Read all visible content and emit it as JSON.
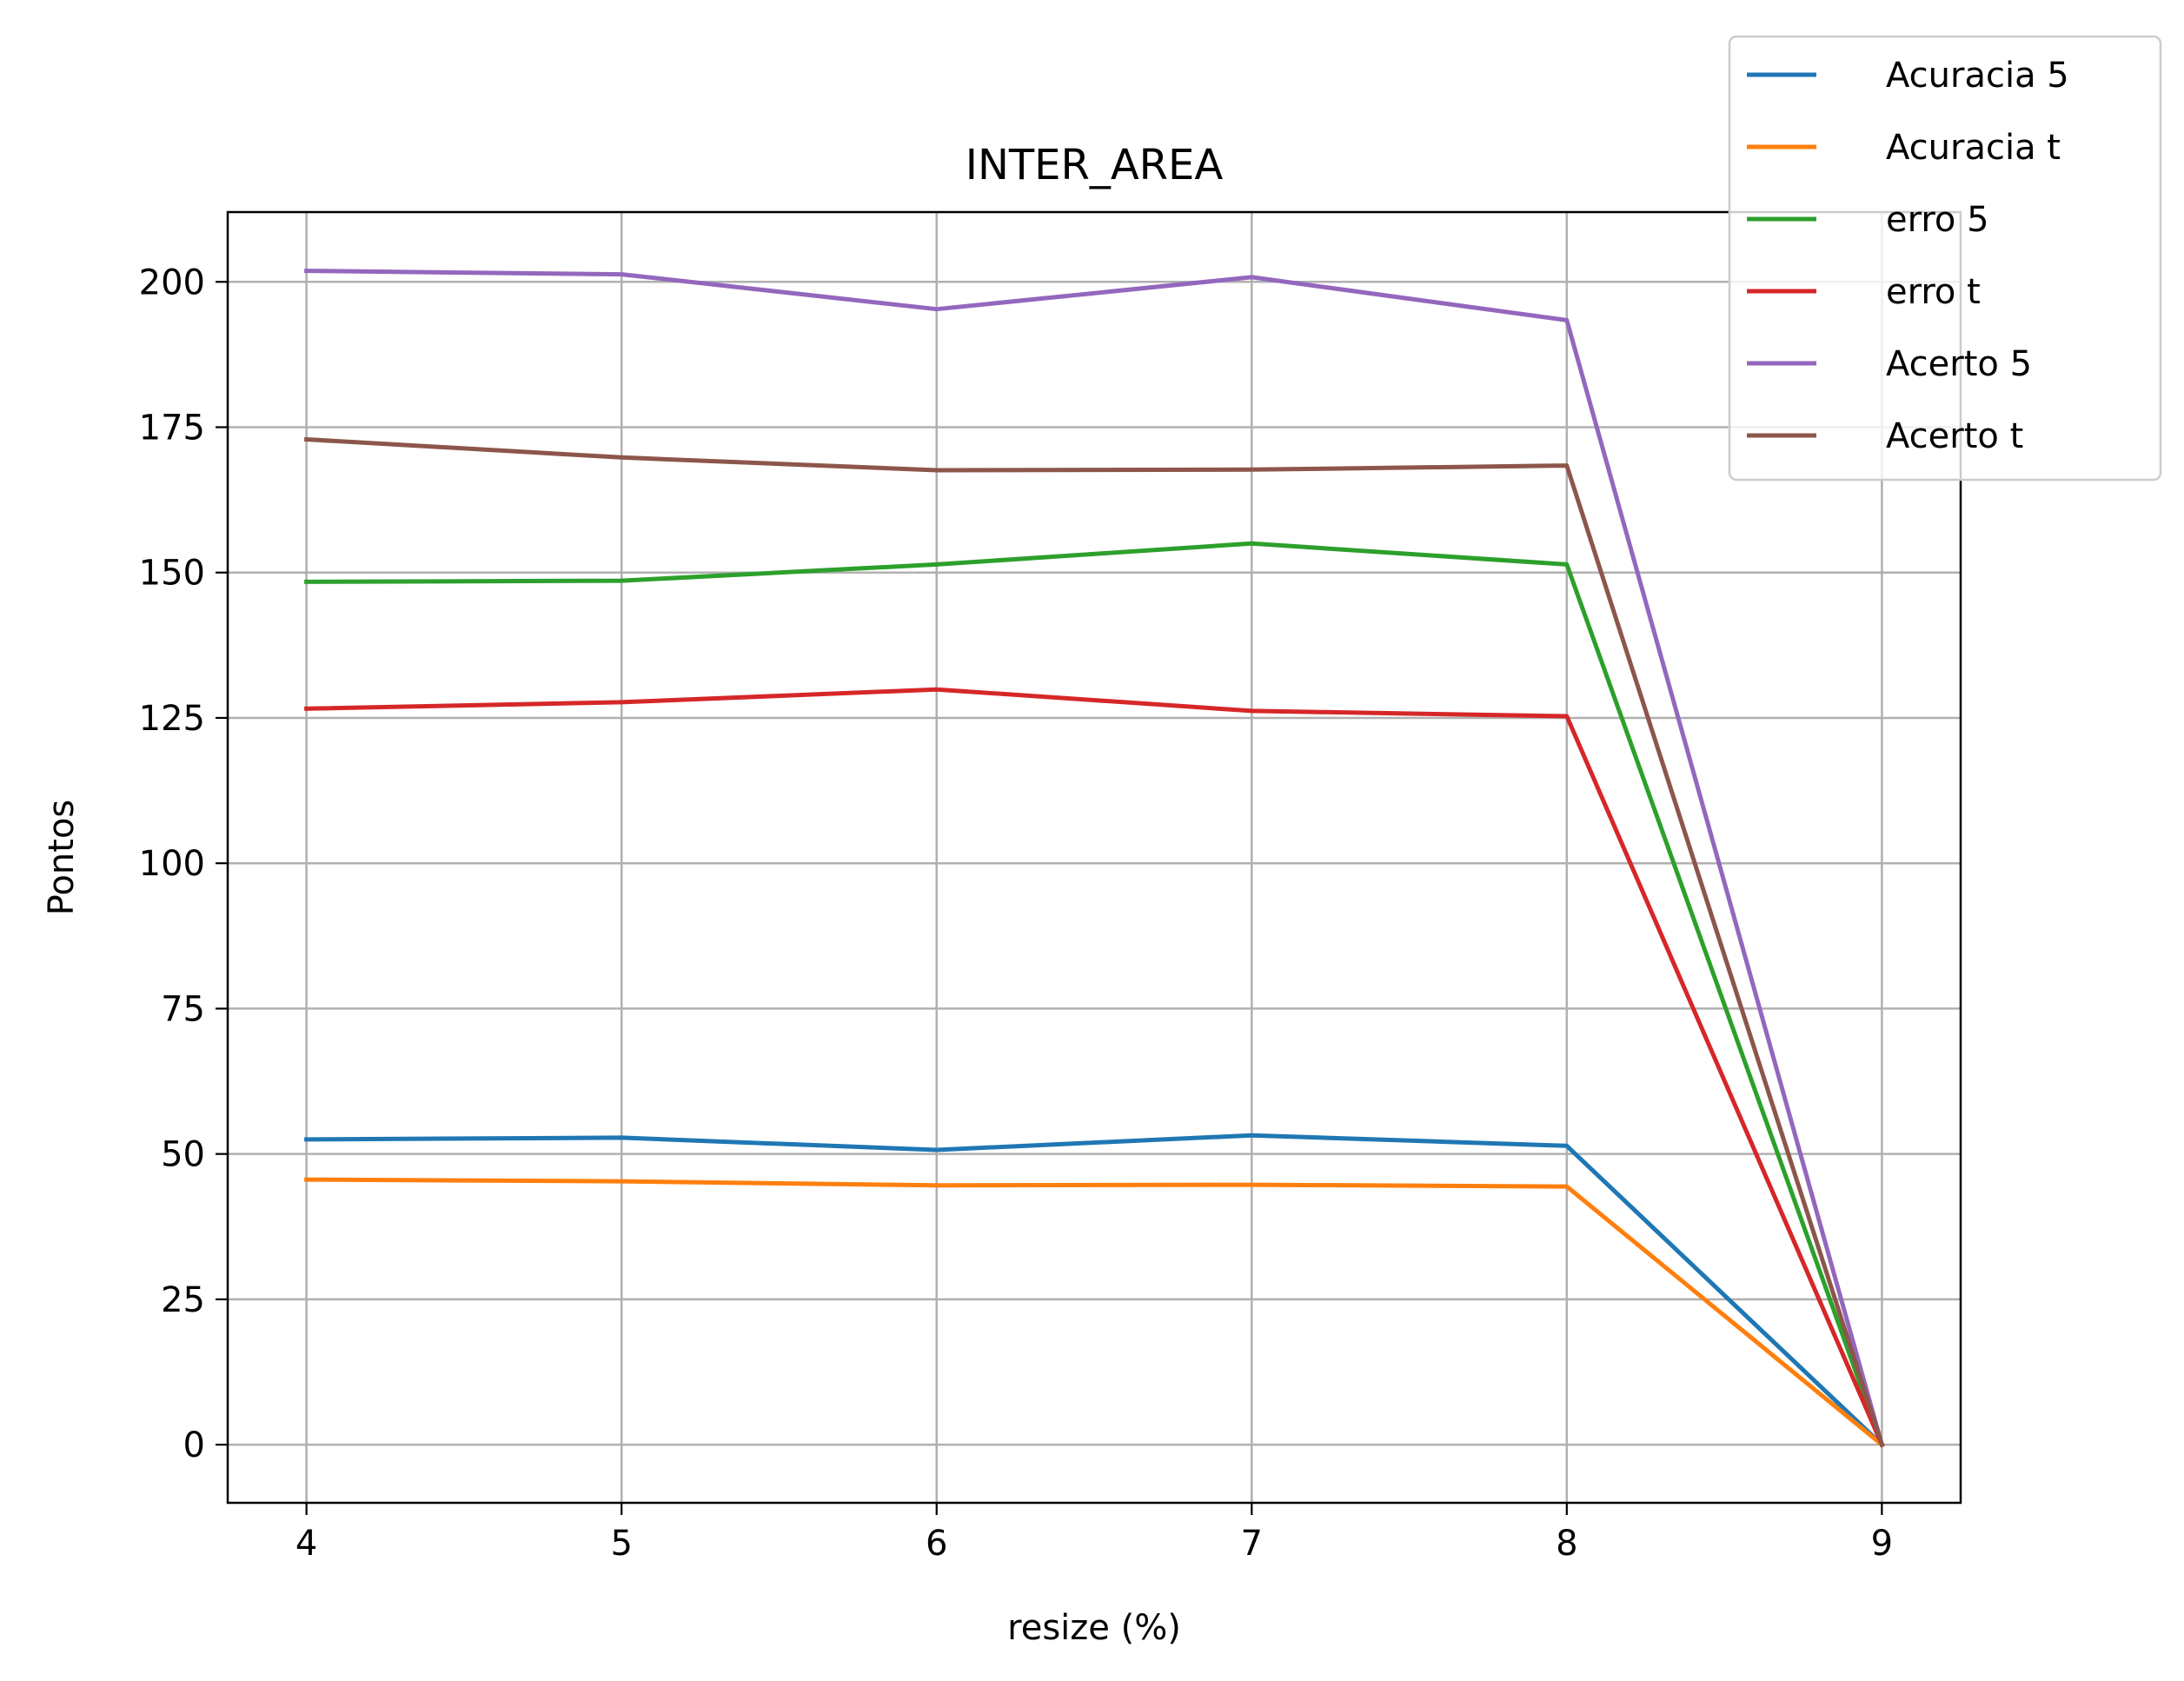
{
  "chart_data": {
    "type": "line",
    "title": "INTER_AREA",
    "xlabel": "resize (%)",
    "ylabel": "Pontos",
    "x": [
      4,
      5,
      6,
      7,
      8,
      9
    ],
    "xlim": [
      3.75,
      9.25
    ],
    "ylim": [
      -10,
      212
    ],
    "xticks": [
      4,
      5,
      6,
      7,
      8,
      9
    ],
    "yticks": [
      0,
      25,
      50,
      75,
      100,
      125,
      150,
      175,
      200
    ],
    "grid": true,
    "legend_position": "top-right",
    "series": [
      {
        "name": "Acuracia 5",
        "color": "#1f77b4",
        "values": [
          52.5,
          52.8,
          50.7,
          53.2,
          51.4,
          0
        ]
      },
      {
        "name": "Acuracia t",
        "color": "#ff7f0e",
        "values": [
          45.6,
          45.3,
          44.6,
          44.7,
          44.4,
          0
        ]
      },
      {
        "name": "erro 5",
        "color": "#2ca02c",
        "values": [
          148.4,
          148.6,
          151.4,
          155.0,
          151.4,
          0
        ]
      },
      {
        "name": "erro t",
        "color": "#d62728",
        "values": [
          126.6,
          127.7,
          129.9,
          126.2,
          125.3,
          0
        ]
      },
      {
        "name": "Acerto 5",
        "color": "#9467bd",
        "values": [
          201.9,
          201.3,
          195.3,
          200.8,
          193.4,
          0
        ]
      },
      {
        "name": "Acerto t",
        "color": "#8c564b",
        "values": [
          172.9,
          169.8,
          167.6,
          167.7,
          168.4,
          0
        ]
      }
    ]
  }
}
